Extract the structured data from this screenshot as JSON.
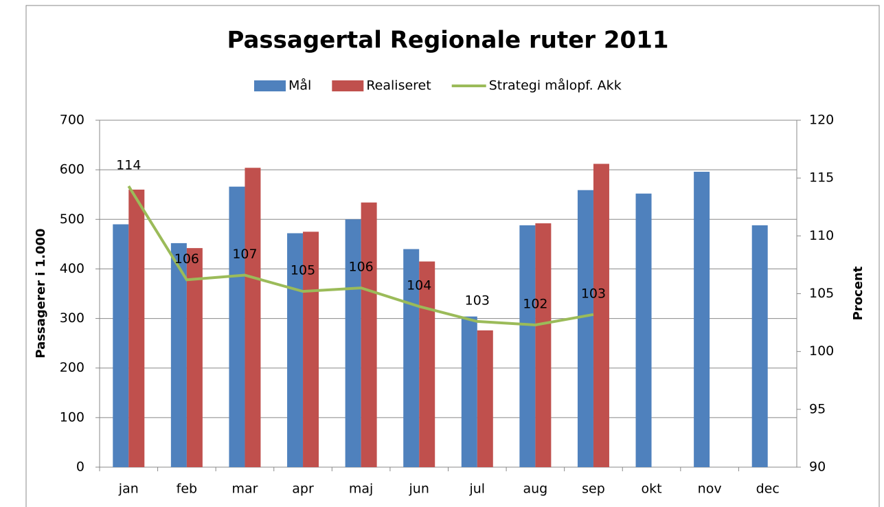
{
  "chart_data": {
    "type": "bar",
    "title": "Passagertal Regionale ruter 2011",
    "categories": [
      "jan",
      "feb",
      "mar",
      "apr",
      "maj",
      "jun",
      "jul",
      "aug",
      "sep",
      "okt",
      "nov",
      "dec"
    ],
    "series": [
      {
        "name": "Mål",
        "color": "#4f81bd",
        "type": "bar",
        "values": [
          490,
          452,
          566,
          472,
          500,
          440,
          304,
          488,
          559,
          552,
          596,
          488
        ]
      },
      {
        "name": "Realiseret",
        "color": "#c0504d",
        "type": "bar",
        "values": [
          560,
          442,
          604,
          475,
          534,
          415,
          276,
          492,
          612,
          null,
          null,
          null
        ]
      },
      {
        "name": "Strategi målopf. Akk",
        "color": "#9bbb59",
        "type": "line",
        "axis": "y2",
        "values": [
          114.3,
          106.2,
          106.6,
          105.2,
          105.5,
          103.9,
          102.6,
          102.3,
          103.2,
          null,
          null,
          null
        ],
        "value_labels": [
          "114",
          "106",
          "107",
          "105",
          "106",
          "104",
          "103",
          "102",
          "103",
          null,
          null,
          null
        ]
      }
    ],
    "ylabel": "Passagerer i 1.000",
    "y2label": "Procent",
    "ylim": [
      0,
      700
    ],
    "yticks": [
      0,
      100,
      200,
      300,
      400,
      500,
      600,
      700
    ],
    "y2lim": [
      90,
      120
    ],
    "y2ticks": [
      90,
      95,
      100,
      105,
      110,
      115,
      120
    ],
    "grid": true,
    "legend": "top"
  }
}
